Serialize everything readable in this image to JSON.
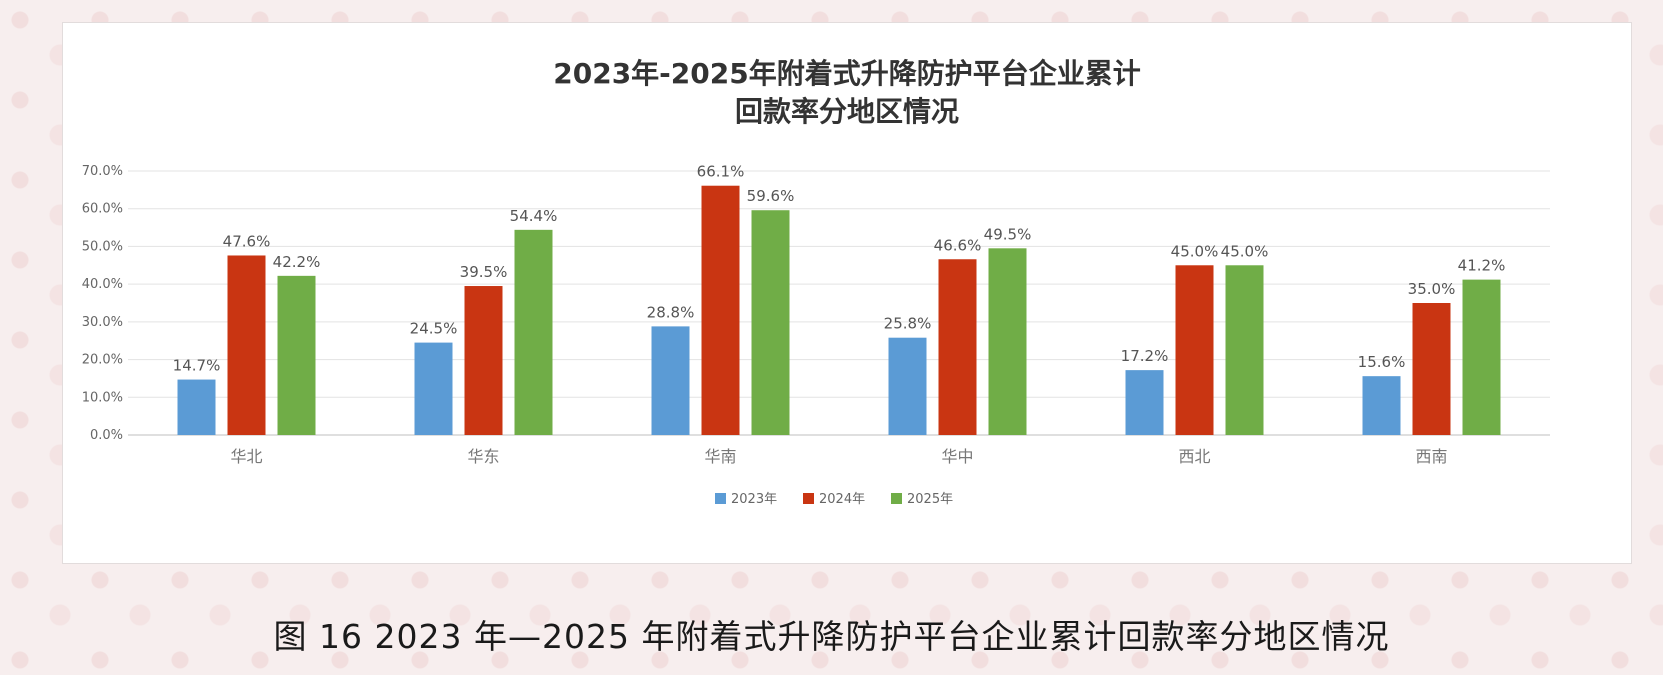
{
  "caption": "图 16   2023 年—2025 年附着式升降防护平台企业累计回款率分地区情况",
  "chart_data": {
    "type": "bar",
    "title_line1": "2023年-2025年附着式升降防护平台企业累计",
    "title_line2": "回款率分地区情况",
    "categories": [
      "华北",
      "华东",
      "华南",
      "华中",
      "西北",
      "西南"
    ],
    "series": [
      {
        "name": "2023年",
        "color": "#5b9bd5",
        "values": [
          14.7,
          24.5,
          28.8,
          25.8,
          17.2,
          15.6
        ]
      },
      {
        "name": "2024年",
        "color": "#c93512",
        "values": [
          47.6,
          39.5,
          66.1,
          46.6,
          45.0,
          35.0
        ]
      },
      {
        "name": "2025年",
        "color": "#70ad47",
        "values": [
          42.2,
          54.4,
          59.6,
          49.5,
          45.0,
          41.2
        ]
      }
    ],
    "ylim": [
      0,
      70
    ],
    "yticks": [
      "0.0%",
      "10.0%",
      "20.0%",
      "30.0%",
      "40.0%",
      "50.0%",
      "60.0%",
      "70.0%"
    ],
    "grid": true,
    "legend": "bottom",
    "value_suffix": "%"
  }
}
